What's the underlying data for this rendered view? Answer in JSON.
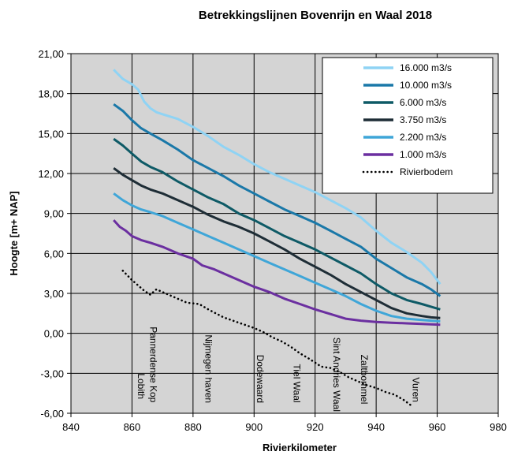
{
  "chart_data": {
    "type": "line",
    "title": "Betrekkingslijnen Bovenrijn en Waal 2018",
    "xlabel": "Rivierkilometer",
    "ylabel": "Hoogte [m+ NAP]",
    "xlim": [
      840,
      980
    ],
    "ylim": [
      -6,
      21
    ],
    "xticks": [
      "840",
      "860",
      "880",
      "900",
      "920",
      "940",
      "960",
      "980"
    ],
    "yticks": [
      "-6,00",
      "-3,00",
      "0,00",
      "3,00",
      "6,00",
      "9,00",
      "12,00",
      "15,00",
      "18,00",
      "21,00"
    ],
    "grid": true,
    "legend_position": "top-right",
    "series": [
      {
        "name": "16.000 m3/s",
        "color": "#8fd3f4",
        "style": "solid",
        "x": [
          854,
          857,
          860,
          862,
          864,
          866,
          868,
          870,
          875,
          880,
          885,
          890,
          895,
          900,
          905,
          910,
          915,
          920,
          925,
          930,
          935,
          940,
          945,
          950,
          955,
          958,
          961
        ],
        "y": [
          19.8,
          19.1,
          18.7,
          18.3,
          17.4,
          16.9,
          16.6,
          16.45,
          16.1,
          15.5,
          14.8,
          14.0,
          13.4,
          12.7,
          12.1,
          11.6,
          11.1,
          10.6,
          10.0,
          9.4,
          8.7,
          7.7,
          6.8,
          6.1,
          5.3,
          4.6,
          3.7
        ]
      },
      {
        "name": "10.000 m3/s",
        "color": "#1a78a8",
        "style": "solid",
        "x": [
          854,
          857,
          860,
          863,
          866,
          870,
          875,
          880,
          885,
          890,
          895,
          900,
          905,
          910,
          915,
          920,
          925,
          930,
          935,
          940,
          945,
          950,
          955,
          958,
          961
        ],
        "y": [
          17.2,
          16.7,
          16.0,
          15.4,
          15.0,
          14.5,
          13.8,
          13.0,
          12.4,
          11.8,
          11.1,
          10.5,
          9.9,
          9.3,
          8.8,
          8.3,
          7.7,
          7.1,
          6.5,
          5.6,
          4.9,
          4.2,
          3.7,
          3.3,
          2.8
        ]
      },
      {
        "name": "6.000 m3/s",
        "color": "#0e5a66",
        "style": "solid",
        "x": [
          854,
          857,
          860,
          863,
          866,
          870,
          875,
          880,
          885,
          890,
          895,
          900,
          905,
          910,
          915,
          920,
          925,
          930,
          935,
          940,
          945,
          950,
          955,
          958,
          961
        ],
        "y": [
          14.6,
          14.1,
          13.5,
          12.9,
          12.5,
          12.1,
          11.4,
          10.8,
          10.2,
          9.7,
          9.0,
          8.5,
          7.9,
          7.3,
          6.8,
          6.3,
          5.7,
          5.1,
          4.5,
          3.7,
          3.0,
          2.5,
          2.2,
          2.0,
          1.8
        ]
      },
      {
        "name": "3.750 m3/s",
        "color": "#1e2d36",
        "style": "solid",
        "x": [
          854,
          857,
          860,
          863,
          866,
          870,
          875,
          880,
          885,
          890,
          895,
          900,
          905,
          910,
          915,
          920,
          925,
          930,
          935,
          940,
          945,
          950,
          955,
          958,
          961
        ],
        "y": [
          12.4,
          11.9,
          11.5,
          11.1,
          10.8,
          10.5,
          10.0,
          9.5,
          8.9,
          8.4,
          8.0,
          7.5,
          6.9,
          6.3,
          5.6,
          5.0,
          4.4,
          3.7,
          3.1,
          2.5,
          1.9,
          1.5,
          1.3,
          1.2,
          1.15
        ]
      },
      {
        "name": "2.200 m3/s",
        "color": "#3fa6d8",
        "style": "solid",
        "x": [
          854,
          857,
          860,
          863,
          866,
          870,
          875,
          880,
          885,
          890,
          895,
          900,
          905,
          910,
          915,
          920,
          925,
          930,
          935,
          940,
          945,
          950,
          955,
          958,
          961
        ],
        "y": [
          10.5,
          10.0,
          9.6,
          9.3,
          9.1,
          8.8,
          8.3,
          7.8,
          7.3,
          6.8,
          6.3,
          5.8,
          5.3,
          4.8,
          4.3,
          3.8,
          3.3,
          2.8,
          2.2,
          1.7,
          1.3,
          1.1,
          1.0,
          0.95,
          0.9
        ]
      },
      {
        "name": "1.000 m3/s",
        "color": "#6b2fa0",
        "style": "solid",
        "x": [
          854,
          856,
          858,
          860,
          863,
          866,
          870,
          875,
          880,
          883,
          887,
          890,
          895,
          900,
          905,
          910,
          915,
          920,
          925,
          930,
          935,
          940,
          945,
          950,
          955,
          958,
          961
        ],
        "y": [
          8.5,
          8.0,
          7.7,
          7.3,
          7.0,
          6.8,
          6.5,
          6.0,
          5.6,
          5.1,
          4.8,
          4.5,
          4.0,
          3.5,
          3.1,
          2.6,
          2.2,
          1.8,
          1.45,
          1.1,
          0.95,
          0.85,
          0.8,
          0.75,
          0.7,
          0.68,
          0.65
        ]
      },
      {
        "name": "Rivierbodem",
        "color": "#000000",
        "style": "dotted",
        "x": [
          857,
          860,
          862,
          864,
          866,
          867,
          868,
          869,
          870,
          872,
          875,
          878,
          882,
          885,
          890,
          895,
          900,
          903,
          906,
          909,
          912,
          915,
          918,
          920,
          922,
          925,
          928,
          931,
          934,
          937,
          940,
          943,
          946,
          949,
          952
        ],
        "y": [
          4.7,
          4.0,
          3.6,
          3.2,
          2.9,
          3.1,
          3.3,
          3.2,
          3.1,
          2.9,
          2.6,
          2.3,
          2.2,
          1.8,
          1.2,
          0.8,
          0.4,
          0.1,
          -0.3,
          -0.6,
          -1.0,
          -1.5,
          -1.9,
          -2.2,
          -2.5,
          -2.6,
          -2.9,
          -3.3,
          -3.6,
          -3.9,
          -4.1,
          -4.4,
          -4.6,
          -5.0,
          -5.5
        ]
      }
    ],
    "annotations": [
      {
        "text": "Lobith",
        "x": 862,
        "y_top": -3.0
      },
      {
        "text": "Pannerdense Kop",
        "x": 866,
        "y_top": 0.5
      },
      {
        "text": "Nijmegen haven",
        "x": 884,
        "y_top": -0.1
      },
      {
        "text": "Dodewaard",
        "x": 901,
        "y_top": -1.6
      },
      {
        "text": "Tiel Waal",
        "x": 913,
        "y_top": -2.3
      },
      {
        "text": "Sint Andries Waal",
        "x": 926,
        "y_top": -0.3
      },
      {
        "text": "Zaltbommel",
        "x": 935,
        "y_top": -1.6
      },
      {
        "text": "Vuren",
        "x": 952,
        "y_top": -3.3
      }
    ]
  }
}
